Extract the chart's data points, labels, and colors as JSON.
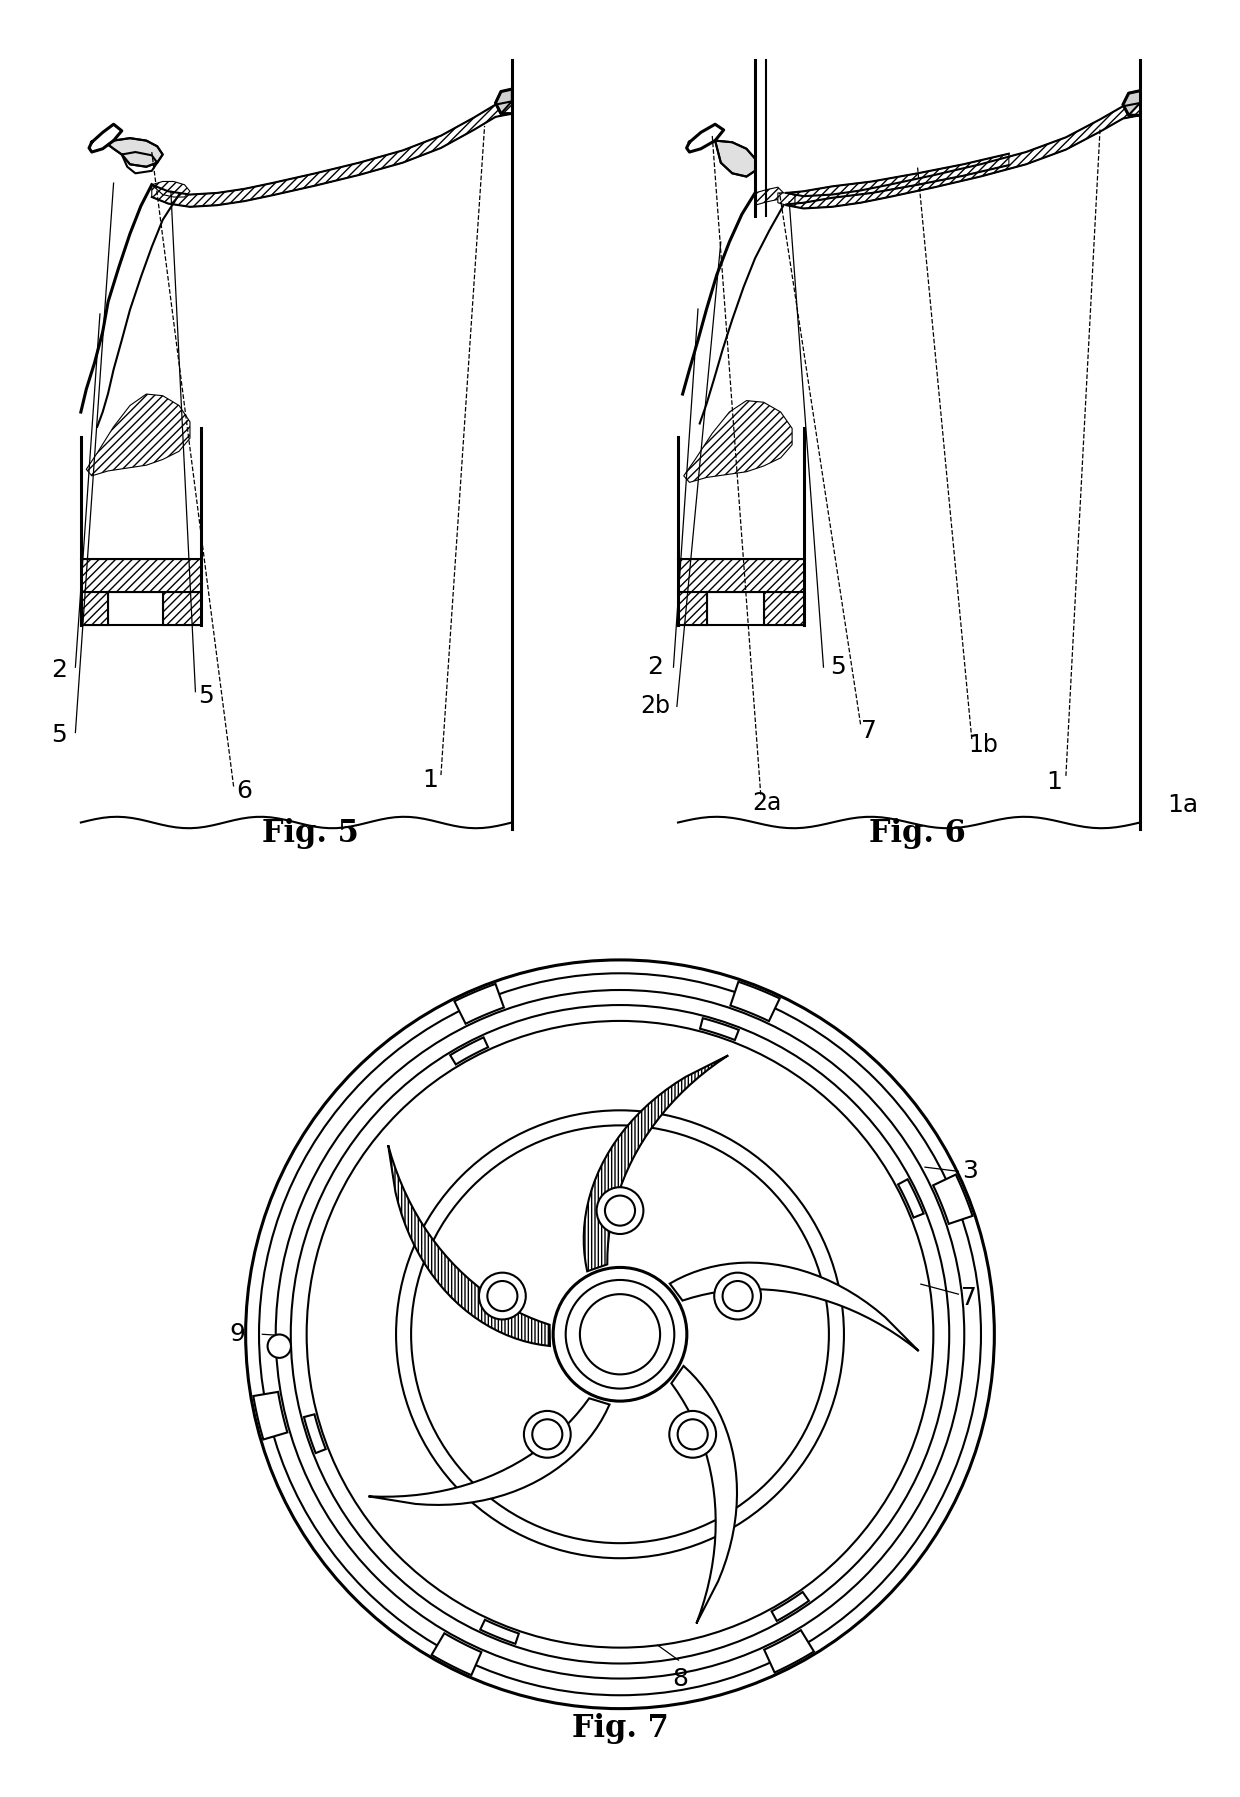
{
  "fig5_label": "Fig. 5",
  "fig6_label": "Fig. 6",
  "fig7_label": "Fig. 7",
  "bg_color": "#ffffff",
  "line_color": "#000000",
  "label_fontsize": 22,
  "annot_fontsize": 18
}
